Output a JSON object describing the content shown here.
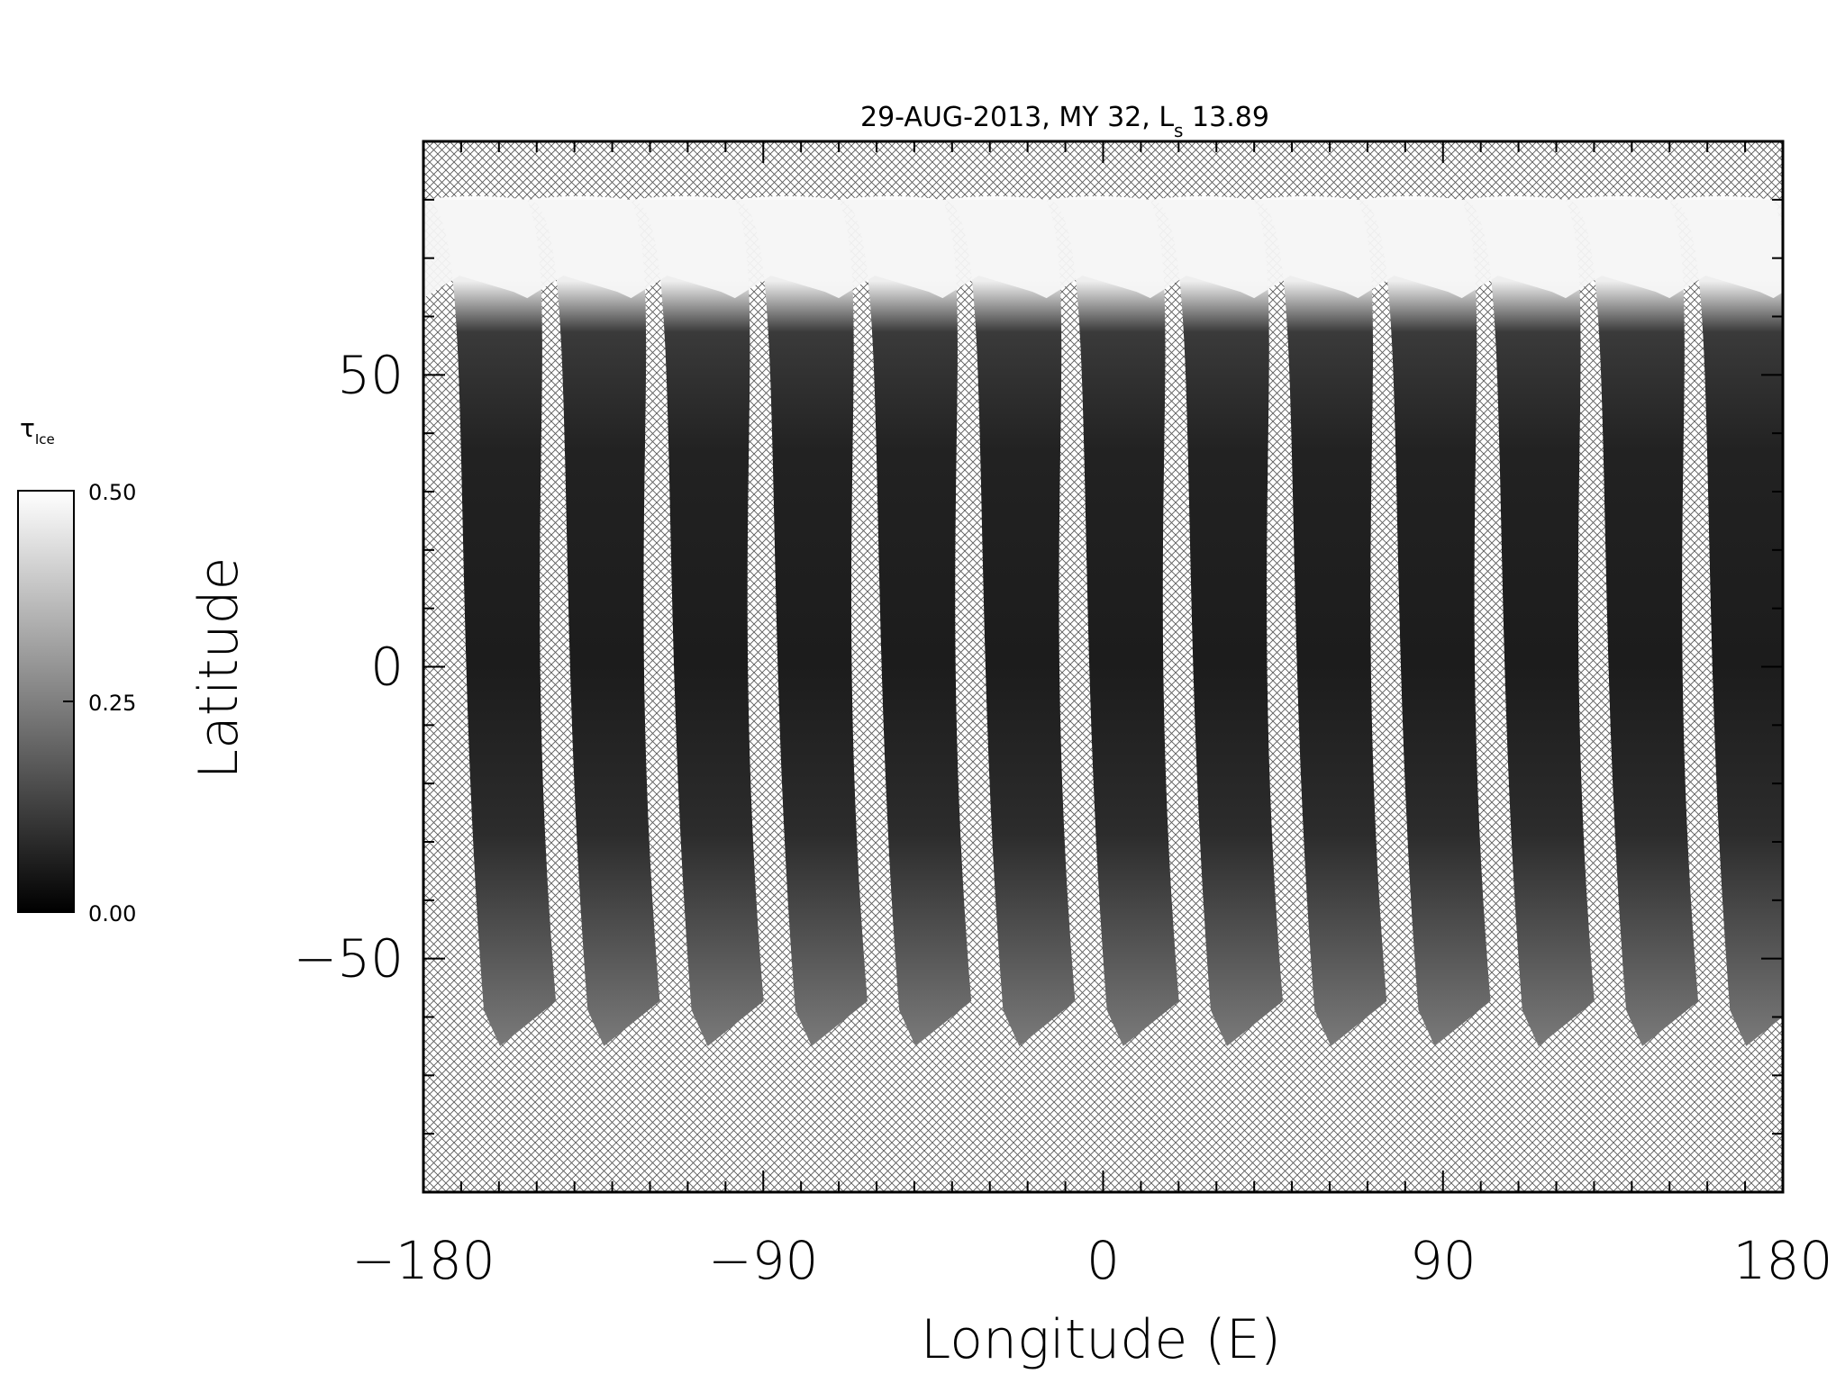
{
  "chart_data": {
    "type": "heatmap",
    "title": {
      "date": "29-AUG-2013",
      "mars_year": "MY 32",
      "ls_symbol": "L",
      "ls_subscript": "s",
      "ls_value": "13.89"
    },
    "xlabel": "Longitude (E)",
    "ylabel": "Latitude",
    "xlim": [
      -180,
      180
    ],
    "ylim": [
      -90,
      90
    ],
    "x_ticks": [
      -180,
      -90,
      0,
      90,
      180
    ],
    "x_tick_labels": [
      "−180",
      "−90",
      "0",
      "90",
      "180"
    ],
    "y_ticks": [
      -50,
      0,
      50
    ],
    "y_tick_labels": [
      "−50",
      "0",
      "50"
    ],
    "colorbar": {
      "label_symbol": "τ",
      "label_subscript": "Ice",
      "ticks": [
        0.0,
        0.25,
        0.5
      ],
      "tick_labels": [
        "0.00",
        "0.25",
        "0.50"
      ],
      "colormap": "grayscale (black low, white high)"
    },
    "missing_data_pattern": "cross-hatch",
    "swath_lon_north": [
      -180,
      -152.5,
      -125,
      -97.5,
      -70,
      -42.5,
      -15,
      12.5,
      40,
      67.5,
      95,
      122.5,
      150,
      177.5
    ],
    "swath_lon_south": [
      -164,
      -136.5,
      -109,
      -81.5,
      -54,
      -26.5,
      1,
      28.5,
      56,
      83.5,
      111,
      138.5,
      166,
      193.5
    ],
    "swath_lat_top": 80,
    "swath_lat_bottom": -65,
    "north_cap_lat": 60
  }
}
